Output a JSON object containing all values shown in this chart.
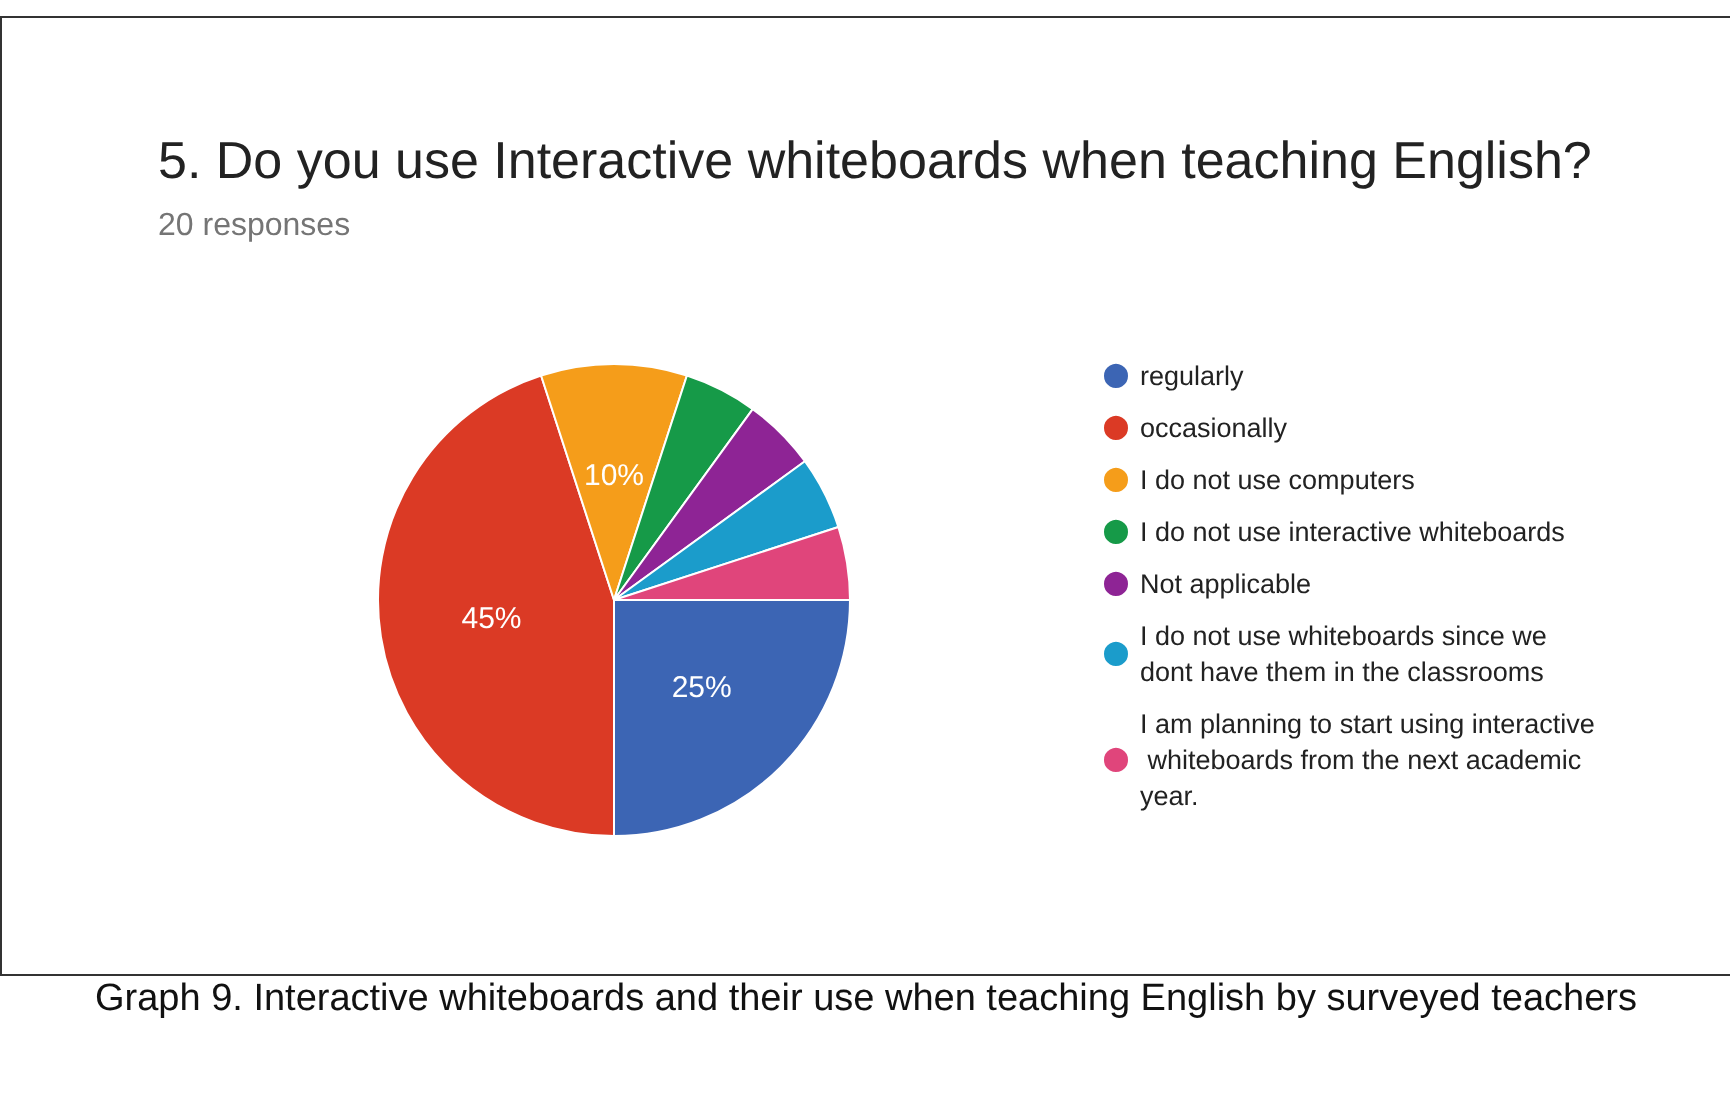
{
  "chart_data": {
    "type": "pie",
    "title": "5. Do you use Interactive whiteboards when teaching English?",
    "subtitle": "20 responses",
    "categories": [
      "regularly",
      "occasionally",
      "I do not use computers",
      "I do not use interactive whiteboards",
      "Not applicable",
      "I do not use whiteboards since we dont have them in the classrooms",
      "I am planning to start using interactive whiteboards from the next academic year."
    ],
    "values": [
      25,
      45,
      10,
      5,
      5,
      5,
      5
    ],
    "colors": [
      "#3c65b4",
      "#db3a25",
      "#f59d1a",
      "#169a48",
      "#8e2495",
      "#1b9ccb",
      "#e0457b"
    ],
    "value_labels": [
      "25%",
      "45%",
      "10%",
      null,
      null,
      null,
      null
    ],
    "legend": "right",
    "annotations": [
      "Graph 9. Interactive whiteboards and their use when teaching English by surveyed teachers"
    ]
  }
}
